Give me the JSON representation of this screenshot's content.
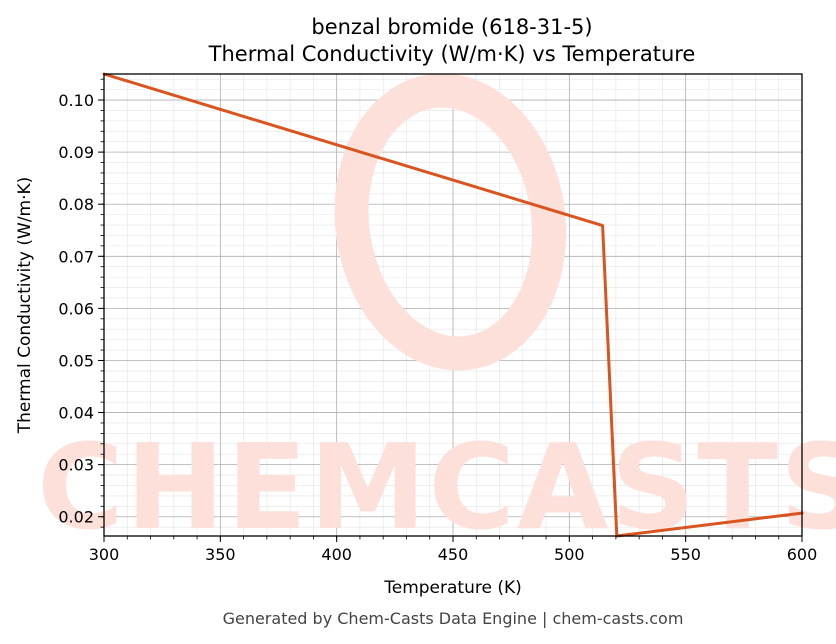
{
  "title_line1": "benzal bromide (618-31-5)",
  "title_line2": "Thermal Conductivity (W/m·K) vs Temperature",
  "footer": "Generated by Chem-Casts Data Engine | chem-casts.com",
  "watermark": "CHEMCASTS",
  "colors": {
    "line": "#d9541e",
    "watermark": "#fde0da",
    "grid": "#b0b0b0"
  },
  "chart_data": {
    "type": "line",
    "xlabel": "Temperature (K)",
    "ylabel": "Thermal Conductivity (W/m·K)",
    "xlim": [
      300,
      600
    ],
    "ylim": [
      0.0163,
      0.105
    ],
    "xticks": [
      300,
      350,
      400,
      450,
      500,
      550,
      600
    ],
    "yticks": [
      0.02,
      0.03,
      0.04,
      0.05,
      0.06,
      0.07,
      0.08,
      0.09,
      0.1
    ],
    "ytick_labels": [
      "0.02",
      "0.03",
      "0.04",
      "0.05",
      "0.06",
      "0.07",
      "0.08",
      "0.09",
      "0.10"
    ],
    "grid": true,
    "series": [
      {
        "x": [
          300,
          514.3,
          520.4,
          600
        ],
        "y": [
          0.105,
          0.0759,
          0.0163,
          0.0207
        ]
      }
    ]
  }
}
